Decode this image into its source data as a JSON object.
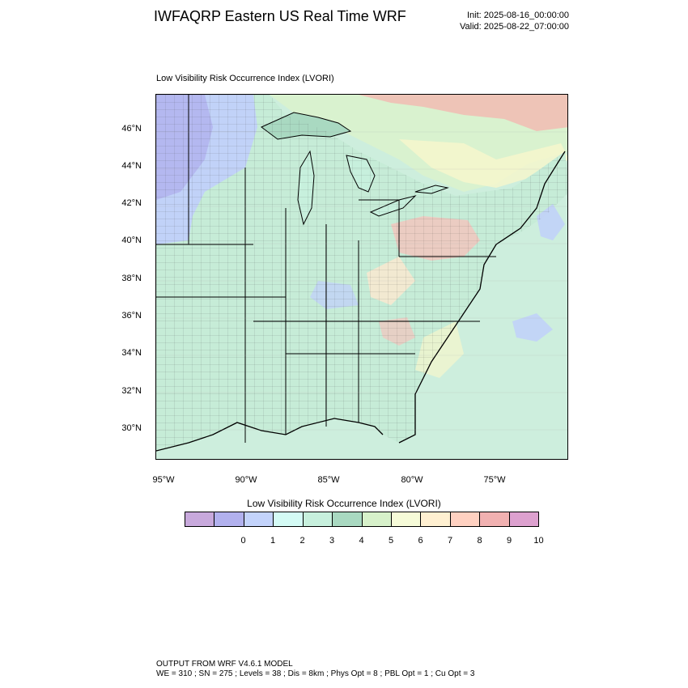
{
  "header": {
    "title": "IWFAQRP Eastern US Real Time WRF",
    "init": "Init: 2025-08-16_00:00:00",
    "valid": "Valid: 2025-08-22_07:00:00"
  },
  "plot": {
    "title": "Low Visibility Risk Occurrence Index   (LVORI)"
  },
  "axes": {
    "lat_labels": [
      "46°N",
      "44°N",
      "42°N",
      "40°N",
      "38°N",
      "36°N",
      "34°N",
      "32°N",
      "30°N"
    ],
    "lon_labels": [
      "95°W",
      "90°W",
      "85°W",
      "80°W",
      "75°W"
    ]
  },
  "colorbar": {
    "title": "Low Visibility Risk Occurrence Index  (LVORI)",
    "colors": [
      "#c8a9dc",
      "#b2b1ee",
      "#c3d3fb",
      "#d4fbf5",
      "#c7f0dd",
      "#a9d9c1",
      "#d7f1ca",
      "#f6fbd8",
      "#fff0d1",
      "#ffd1c1",
      "#f1b1b1",
      "#dda1cf"
    ],
    "labels": [
      "0",
      "1",
      "2",
      "3",
      "4",
      "5",
      "6",
      "7",
      "8",
      "9",
      "10"
    ]
  },
  "footer": {
    "line1": "OUTPUT FROM WRF V4.6.1 MODEL",
    "line2": "WE = 310 ; SN = 275 ; Levels = 38 ; Dis = 8km ; Phys Opt = 8 ; PBL Opt = 1 ; Cu Opt = 3"
  }
}
